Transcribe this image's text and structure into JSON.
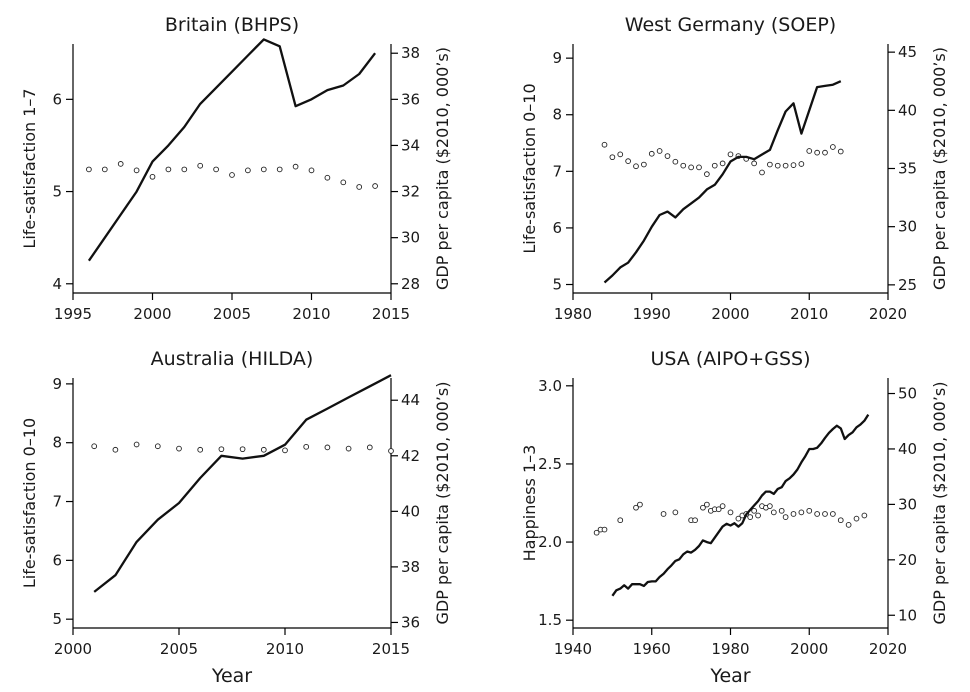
{
  "chart_data": [
    {
      "type": "line",
      "title": "Britain (BHPS)",
      "xlabel": "",
      "ylabel": "Life-satisfaction 1–7",
      "y2label": "GDP per capita ($2010, 000’s)",
      "xlim": [
        1995,
        2015
      ],
      "ylim": [
        3.9,
        6.6
      ],
      "y2lim": [
        27.6,
        38.4
      ],
      "xticks": [
        "1995",
        "2000",
        "2005",
        "2010",
        "2015"
      ],
      "yticks": [
        "4",
        "5",
        "6"
      ],
      "y2ticks": [
        "28",
        "30",
        "32",
        "34",
        "36",
        "38"
      ],
      "grid": false,
      "series": [
        {
          "style": "points",
          "axis": "left",
          "x": [
            1996,
            1997,
            1998,
            1999,
            2000,
            2001,
            2002,
            2003,
            2004,
            2005,
            2006,
            2007,
            2008,
            2009,
            2010,
            2011,
            2012,
            2013,
            2014
          ],
          "y": [
            5.24,
            5.24,
            5.3,
            5.23,
            5.16,
            5.24,
            5.24,
            5.28,
            5.24,
            5.18,
            5.23,
            5.24,
            5.24,
            5.27,
            5.23,
            5.15,
            5.1,
            5.05,
            5.06
          ]
        },
        {
          "style": "line",
          "axis": "right",
          "x": [
            1996,
            1997,
            1998,
            1999,
            2000,
            2001,
            2002,
            2003,
            2004,
            2005,
            2006,
            2007,
            2008,
            2009,
            2010,
            2011,
            2012,
            2013,
            2014
          ],
          "y": [
            29.0,
            30.0,
            31.0,
            32.0,
            33.3,
            34.0,
            34.8,
            35.8,
            36.5,
            37.2,
            37.9,
            38.6,
            38.3,
            35.7,
            36.0,
            36.4,
            36.6,
            37.1,
            38.0
          ]
        }
      ]
    },
    {
      "type": "line",
      "title": "West Germany (SOEP)",
      "xlabel": "",
      "ylabel": "Life-satisfaction 0–10",
      "y2label": "GDP per capita ($2010, 000’s)",
      "xlim": [
        1980,
        2020
      ],
      "ylim": [
        4.85,
        9.25
      ],
      "y2lim": [
        24.3,
        45.7
      ],
      "xticks": [
        "1980",
        "1990",
        "2000",
        "2010",
        "2020"
      ],
      "yticks": [
        "5",
        "6",
        "7",
        "8",
        "9"
      ],
      "y2ticks": [
        "25",
        "30",
        "35",
        "40",
        "45"
      ],
      "grid": false,
      "series": [
        {
          "style": "points",
          "axis": "left",
          "x": [
            1984,
            1985,
            1986,
            1987,
            1988,
            1989,
            1990,
            1991,
            1992,
            1993,
            1994,
            1995,
            1996,
            1997,
            1998,
            1999,
            2000,
            2001,
            2002,
            2003,
            2004,
            2005,
            2006,
            2007,
            2008,
            2009,
            2010,
            2011,
            2012,
            2013,
            2014
          ],
          "y": [
            7.47,
            7.25,
            7.3,
            7.18,
            7.09,
            7.12,
            7.31,
            7.36,
            7.27,
            7.17,
            7.1,
            7.07,
            7.07,
            6.95,
            7.1,
            7.14,
            7.3,
            7.27,
            7.22,
            7.14,
            6.98,
            7.12,
            7.1,
            7.1,
            7.11,
            7.13,
            7.36,
            7.33,
            7.33,
            7.43,
            7.35
          ]
        },
        {
          "style": "line",
          "axis": "right",
          "x": [
            1984,
            1985,
            1986,
            1987,
            1988,
            1989,
            1990,
            1991,
            1992,
            1993,
            1994,
            1995,
            1996,
            1997,
            1998,
            1999,
            2000,
            2001,
            2002,
            2003,
            2004,
            2005,
            2006,
            2007,
            2008,
            2009,
            2010,
            2011,
            2012,
            2013,
            2014
          ],
          "y": [
            25.2,
            25.8,
            26.5,
            26.9,
            27.8,
            28.8,
            30.0,
            31.0,
            31.3,
            30.8,
            31.5,
            32.0,
            32.5,
            33.2,
            33.6,
            34.5,
            35.6,
            36.0,
            36.0,
            35.8,
            36.2,
            36.6,
            38.3,
            39.9,
            40.6,
            38.0,
            40.0,
            42.0,
            42.1,
            42.2,
            42.5
          ]
        }
      ]
    },
    {
      "type": "line",
      "title": "Australia (HILDA)",
      "xlabel": "Year",
      "ylabel": "Life-satisfaction 0–10",
      "y2label": "GDP per capita ($2010, 000’s)",
      "xlim": [
        2000,
        2015
      ],
      "ylim": [
        4.85,
        9.1
      ],
      "y2lim": [
        35.8,
        44.8
      ],
      "xticks": [
        "2000",
        "2005",
        "2010",
        "2015"
      ],
      "yticks": [
        "5",
        "6",
        "7",
        "8",
        "9"
      ],
      "y2ticks": [
        "36",
        "38",
        "40",
        "42",
        "44"
      ],
      "grid": false,
      "series": [
        {
          "style": "points",
          "axis": "left",
          "x": [
            2001,
            2002,
            2003,
            2004,
            2005,
            2006,
            2007,
            2008,
            2009,
            2010,
            2011,
            2012,
            2013,
            2014,
            2015
          ],
          "y": [
            7.94,
            7.88,
            7.97,
            7.94,
            7.9,
            7.88,
            7.89,
            7.89,
            7.88,
            7.87,
            7.93,
            7.92,
            7.9,
            7.92,
            7.86
          ]
        },
        {
          "style": "line",
          "axis": "right",
          "x": [
            2001,
            2002,
            2003,
            2004,
            2005,
            2006,
            2007,
            2008,
            2009,
            2010,
            2011,
            2012,
            2013,
            2014,
            2015
          ],
          "y": [
            37.1,
            37.7,
            38.9,
            39.7,
            40.3,
            41.2,
            42.0,
            41.9,
            42.0,
            42.4,
            43.3,
            43.7,
            44.1,
            44.5,
            44.9
          ]
        }
      ]
    },
    {
      "type": "line",
      "title": "USA (AIPO+GSS)",
      "xlabel": "Year",
      "ylabel": "Happiness 1–3",
      "y2label": "GDP per capita ($2010, 000’s)",
      "xlim": [
        1940,
        2020
      ],
      "ylim": [
        1.45,
        3.05
      ],
      "y2lim": [
        7.7,
        52.8
      ],
      "xticks": [
        "1940",
        "1960",
        "1980",
        "2000",
        "2020"
      ],
      "yticks": [
        "1.5",
        "2.0",
        "2.5",
        "3.0"
      ],
      "y2ticks": [
        "10",
        "20",
        "30",
        "40",
        "50"
      ],
      "grid": false,
      "series": [
        {
          "style": "points",
          "axis": "left",
          "x": [
            1946,
            1947,
            1948,
            1952,
            1956,
            1957,
            1963,
            1966,
            1970,
            1971,
            1973,
            1974,
            1975,
            1976,
            1977,
            1978,
            1980,
            1982,
            1983,
            1984,
            1985,
            1986,
            1987,
            1988,
            1989,
            1990,
            1991,
            1993,
            1994,
            1996,
            1998,
            2000,
            2002,
            2004,
            2006,
            2008,
            2010,
            2012,
            2014
          ],
          "y": [
            2.06,
            2.08,
            2.08,
            2.14,
            2.22,
            2.24,
            2.18,
            2.19,
            2.14,
            2.14,
            2.22,
            2.24,
            2.2,
            2.21,
            2.21,
            2.23,
            2.19,
            2.15,
            2.17,
            2.18,
            2.16,
            2.2,
            2.17,
            2.23,
            2.22,
            2.23,
            2.19,
            2.2,
            2.16,
            2.18,
            2.19,
            2.2,
            2.18,
            2.18,
            2.18,
            2.14,
            2.11,
            2.15,
            2.17
          ]
        },
        {
          "style": "line",
          "axis": "right",
          "x": [
            1950,
            1951,
            1952,
            1953,
            1954,
            1955,
            1956,
            1957,
            1958,
            1959,
            1960,
            1961,
            1962,
            1963,
            1964,
            1965,
            1966,
            1967,
            1968,
            1969,
            1970,
            1971,
            1972,
            1973,
            1974,
            1975,
            1976,
            1977,
            1978,
            1979,
            1980,
            1981,
            1982,
            1983,
            1984,
            1985,
            1986,
            1987,
            1988,
            1989,
            1990,
            1991,
            1992,
            1993,
            1994,
            1995,
            1996,
            1997,
            1998,
            1999,
            2000,
            2001,
            2002,
            2003,
            2004,
            2005,
            2006,
            2007,
            2008,
            2009,
            2010,
            2011,
            2012,
            2013,
            2014,
            2015
          ],
          "y": [
            13.5,
            14.5,
            14.8,
            15.4,
            14.8,
            15.6,
            15.6,
            15.6,
            15.3,
            16.0,
            16.1,
            16.1,
            16.9,
            17.5,
            18.3,
            19.0,
            19.8,
            20.1,
            21.0,
            21.5,
            21.3,
            21.8,
            22.5,
            23.5,
            23.2,
            23.0,
            24.0,
            25.0,
            26.0,
            26.5,
            26.2,
            26.6,
            26.0,
            26.6,
            28.2,
            29.0,
            29.8,
            30.6,
            31.6,
            32.3,
            32.3,
            31.9,
            32.8,
            33.1,
            34.2,
            34.7,
            35.4,
            36.3,
            37.6,
            38.7,
            40.0,
            40.0,
            40.2,
            41.0,
            42.0,
            42.9,
            43.6,
            44.2,
            43.7,
            41.8,
            42.5,
            43.0,
            43.9,
            44.4,
            45.1,
            46.2
          ]
        }
      ]
    }
  ]
}
